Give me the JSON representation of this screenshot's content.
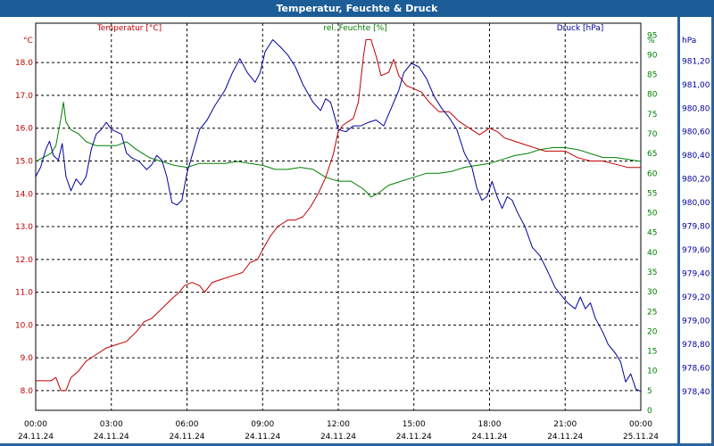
{
  "title": "Temperatur, Feuchte & Druck",
  "colors": {
    "temp": "#c00000",
    "hum": "#008000",
    "press": "#0000a0",
    "grid": "#000000",
    "titlebar": "#1c5d97"
  },
  "chart_data": {
    "type": "line",
    "title": "Temperatur, Feuchte & Druck",
    "x_ticks": [
      {
        "t": 0,
        "time": "00:00",
        "date": "24.11.24"
      },
      {
        "t": 3,
        "time": "03:00",
        "date": "24.11.24"
      },
      {
        "t": 6,
        "time": "06:00",
        "date": "24.11.24"
      },
      {
        "t": 9,
        "time": "09:00",
        "date": "24.11.24"
      },
      {
        "t": 12,
        "time": "12:00",
        "date": "24.11.24"
      },
      {
        "t": 15,
        "time": "15:00",
        "date": "24.11.24"
      },
      {
        "t": 18,
        "time": "18:00",
        "date": "24.11.24"
      },
      {
        "t": 21,
        "time": "21:00",
        "date": "24.11.24"
      },
      {
        "t": 24,
        "time": "00:00",
        "date": "25.11.24"
      }
    ],
    "xlim": [
      0,
      24
    ],
    "axes": {
      "temp": {
        "unit": "°C",
        "ylim": [
          7.4,
          19.2
        ],
        "ticks": [
          "8.0",
          "9.0",
          "10.0",
          "11.0",
          "12.0",
          "13.0",
          "14.0",
          "15.0",
          "16.0",
          "17.0",
          "18.0"
        ]
      },
      "hum": {
        "unit": "%",
        "ylim": [
          0,
          98
        ],
        "ticks": [
          "0",
          "5",
          "10",
          "15",
          "20",
          "25",
          "30",
          "35",
          "40",
          "45",
          "50",
          "55",
          "60",
          "65",
          "70",
          "75",
          "80",
          "85",
          "90",
          "95"
        ]
      },
      "press": {
        "unit": "hPa",
        "ylim": [
          978.24,
          981.52
        ],
        "ticks": [
          "978,40",
          "978,60",
          "978,80",
          "979,00",
          "979,20",
          "979,40",
          "979,60",
          "979,80",
          "980,00",
          "980,20",
          "980,40",
          "980,60",
          "980,80",
          "981,00",
          "981,20"
        ]
      }
    },
    "series": [
      {
        "name": "Temperatur [°C]",
        "key": "temp",
        "points": [
          [
            0,
            8.3
          ],
          [
            0.6,
            8.3
          ],
          [
            0.8,
            8.4
          ],
          [
            1.0,
            8.0
          ],
          [
            1.2,
            8.0
          ],
          [
            1.4,
            8.4
          ],
          [
            1.7,
            8.6
          ],
          [
            2.0,
            8.9
          ],
          [
            2.4,
            9.1
          ],
          [
            2.8,
            9.3
          ],
          [
            3.2,
            9.4
          ],
          [
            3.6,
            9.5
          ],
          [
            4.0,
            9.8
          ],
          [
            4.3,
            10.1
          ],
          [
            4.6,
            10.2
          ],
          [
            5.0,
            10.5
          ],
          [
            5.4,
            10.8
          ],
          [
            5.7,
            11.0
          ],
          [
            5.9,
            11.2
          ],
          [
            6.2,
            11.3
          ],
          [
            6.5,
            11.2
          ],
          [
            6.7,
            11.0
          ],
          [
            7.0,
            11.3
          ],
          [
            7.4,
            11.4
          ],
          [
            7.8,
            11.5
          ],
          [
            8.2,
            11.6
          ],
          [
            8.5,
            11.9
          ],
          [
            8.8,
            12.0
          ],
          [
            9.0,
            12.3
          ],
          [
            9.3,
            12.7
          ],
          [
            9.6,
            13.0
          ],
          [
            10.0,
            13.2
          ],
          [
            10.3,
            13.2
          ],
          [
            10.6,
            13.3
          ],
          [
            10.9,
            13.6
          ],
          [
            11.2,
            14.0
          ],
          [
            11.5,
            14.5
          ],
          [
            11.8,
            15.2
          ],
          [
            12.0,
            15.9
          ],
          [
            12.2,
            16.1
          ],
          [
            12.4,
            16.2
          ],
          [
            12.6,
            16.3
          ],
          [
            12.8,
            16.8
          ],
          [
            12.9,
            17.5
          ],
          [
            13.0,
            18.2
          ],
          [
            13.1,
            18.7
          ],
          [
            13.3,
            18.7
          ],
          [
            13.5,
            18.2
          ],
          [
            13.7,
            17.6
          ],
          [
            14.0,
            17.7
          ],
          [
            14.2,
            18.1
          ],
          [
            14.4,
            17.6
          ],
          [
            14.7,
            17.3
          ],
          [
            15.0,
            17.2
          ],
          [
            15.3,
            17.1
          ],
          [
            15.6,
            16.8
          ],
          [
            16.0,
            16.5
          ],
          [
            16.4,
            16.5
          ],
          [
            16.8,
            16.2
          ],
          [
            17.2,
            16.0
          ],
          [
            17.6,
            15.8
          ],
          [
            18.0,
            16.0
          ],
          [
            18.3,
            15.9
          ],
          [
            18.6,
            15.7
          ],
          [
            19.0,
            15.6
          ],
          [
            19.4,
            15.5
          ],
          [
            19.8,
            15.4
          ],
          [
            20.2,
            15.3
          ],
          [
            20.6,
            15.3
          ],
          [
            21.0,
            15.3
          ],
          [
            21.5,
            15.1
          ],
          [
            22.0,
            15.0
          ],
          [
            22.5,
            15.0
          ],
          [
            23.0,
            14.9
          ],
          [
            23.5,
            14.8
          ],
          [
            24.0,
            14.8
          ]
        ]
      },
      {
        "name": "rel. Feuchte [%]",
        "key": "hum",
        "points": [
          [
            0,
            63
          ],
          [
            0.3,
            64
          ],
          [
            0.6,
            65
          ],
          [
            0.8,
            67
          ],
          [
            1.0,
            74
          ],
          [
            1.1,
            78
          ],
          [
            1.2,
            73
          ],
          [
            1.4,
            71
          ],
          [
            1.7,
            70
          ],
          [
            2.0,
            68
          ],
          [
            2.4,
            67
          ],
          [
            2.8,
            67
          ],
          [
            3.2,
            67
          ],
          [
            3.6,
            68
          ],
          [
            4.0,
            66
          ],
          [
            4.5,
            64
          ],
          [
            5.0,
            63
          ],
          [
            5.5,
            62
          ],
          [
            6.0,
            61.5
          ],
          [
            6.5,
            62.5
          ],
          [
            7.0,
            62.5
          ],
          [
            7.5,
            62.5
          ],
          [
            8.0,
            63
          ],
          [
            8.5,
            62.5
          ],
          [
            9.0,
            62
          ],
          [
            9.5,
            61
          ],
          [
            10.0,
            61
          ],
          [
            10.5,
            61.5
          ],
          [
            11.0,
            61
          ],
          [
            11.5,
            59
          ],
          [
            12.0,
            58
          ],
          [
            12.5,
            58
          ],
          [
            13.0,
            56
          ],
          [
            13.3,
            54
          ],
          [
            13.6,
            55
          ],
          [
            14.0,
            57
          ],
          [
            14.5,
            58
          ],
          [
            15.0,
            59
          ],
          [
            15.5,
            60
          ],
          [
            16.0,
            60
          ],
          [
            16.5,
            60.5
          ],
          [
            17.0,
            61.5
          ],
          [
            17.5,
            62
          ],
          [
            18.0,
            62.5
          ],
          [
            18.5,
            63.5
          ],
          [
            19.0,
            64.5
          ],
          [
            19.5,
            65
          ],
          [
            20.0,
            66
          ],
          [
            20.5,
            66.5
          ],
          [
            21.0,
            66.5
          ],
          [
            21.5,
            66
          ],
          [
            22.0,
            65
          ],
          [
            22.5,
            64
          ],
          [
            23.0,
            64
          ],
          [
            23.5,
            63.5
          ],
          [
            24.0,
            63
          ]
        ]
      },
      {
        "name": "Druck [hPa]",
        "key": "press",
        "points": [
          [
            0,
            980.22
          ],
          [
            0.2,
            980.3
          ],
          [
            0.4,
            980.45
          ],
          [
            0.55,
            980.52
          ],
          [
            0.7,
            980.4
          ],
          [
            0.9,
            980.36
          ],
          [
            1.05,
            980.5
          ],
          [
            1.2,
            980.22
          ],
          [
            1.4,
            980.1
          ],
          [
            1.6,
            980.2
          ],
          [
            1.8,
            980.15
          ],
          [
            2.0,
            980.22
          ],
          [
            2.2,
            980.45
          ],
          [
            2.4,
            980.58
          ],
          [
            2.6,
            980.62
          ],
          [
            2.8,
            980.68
          ],
          [
            3.0,
            980.62
          ],
          [
            3.2,
            980.6
          ],
          [
            3.4,
            980.58
          ],
          [
            3.6,
            980.42
          ],
          [
            3.8,
            980.38
          ],
          [
            4.1,
            980.35
          ],
          [
            4.4,
            980.28
          ],
          [
            4.6,
            980.32
          ],
          [
            4.8,
            980.4
          ],
          [
            5.0,
            980.36
          ],
          [
            5.2,
            980.22
          ],
          [
            5.4,
            980.0
          ],
          [
            5.6,
            979.98
          ],
          [
            5.8,
            980.02
          ],
          [
            6.0,
            980.25
          ],
          [
            6.2,
            980.4
          ],
          [
            6.5,
            980.62
          ],
          [
            6.8,
            980.7
          ],
          [
            7.1,
            980.82
          ],
          [
            7.5,
            980.95
          ],
          [
            7.8,
            981.1
          ],
          [
            8.1,
            981.22
          ],
          [
            8.4,
            981.1
          ],
          [
            8.7,
            981.02
          ],
          [
            8.9,
            981.1
          ],
          [
            9.1,
            981.28
          ],
          [
            9.4,
            981.38
          ],
          [
            9.7,
            981.32
          ],
          [
            10.0,
            981.25
          ],
          [
            10.3,
            981.15
          ],
          [
            10.6,
            981.0
          ],
          [
            11.0,
            980.85
          ],
          [
            11.3,
            980.78
          ],
          [
            11.5,
            980.88
          ],
          [
            11.7,
            980.85
          ],
          [
            12.0,
            980.62
          ],
          [
            12.3,
            980.6
          ],
          [
            12.6,
            980.65
          ],
          [
            12.9,
            980.65
          ],
          [
            13.2,
            980.68
          ],
          [
            13.5,
            980.7
          ],
          [
            13.8,
            980.65
          ],
          [
            14.1,
            980.8
          ],
          [
            14.4,
            980.95
          ],
          [
            14.6,
            981.1
          ],
          [
            14.9,
            981.18
          ],
          [
            15.2,
            981.15
          ],
          [
            15.5,
            981.05
          ],
          [
            15.8,
            980.9
          ],
          [
            16.1,
            980.8
          ],
          [
            16.4,
            980.72
          ],
          [
            16.7,
            980.62
          ],
          [
            17.0,
            980.42
          ],
          [
            17.3,
            980.3
          ],
          [
            17.5,
            980.12
          ],
          [
            17.7,
            980.02
          ],
          [
            17.9,
            980.05
          ],
          [
            18.1,
            980.18
          ],
          [
            18.3,
            980.05
          ],
          [
            18.5,
            979.95
          ],
          [
            18.7,
            980.05
          ],
          [
            18.9,
            980.02
          ],
          [
            19.1,
            979.92
          ],
          [
            19.4,
            979.8
          ],
          [
            19.7,
            979.62
          ],
          [
            20.0,
            979.55
          ],
          [
            20.3,
            979.42
          ],
          [
            20.6,
            979.28
          ],
          [
            20.9,
            979.2
          ],
          [
            21.1,
            979.15
          ],
          [
            21.4,
            979.1
          ],
          [
            21.6,
            979.2
          ],
          [
            21.8,
            979.1
          ],
          [
            22.0,
            979.15
          ],
          [
            22.2,
            979.02
          ],
          [
            22.5,
            978.9
          ],
          [
            22.7,
            978.8
          ],
          [
            23.0,
            978.72
          ],
          [
            23.2,
            978.65
          ],
          [
            23.4,
            978.48
          ],
          [
            23.6,
            978.55
          ],
          [
            23.8,
            978.42
          ],
          [
            24.0,
            978.4
          ]
        ]
      }
    ]
  }
}
